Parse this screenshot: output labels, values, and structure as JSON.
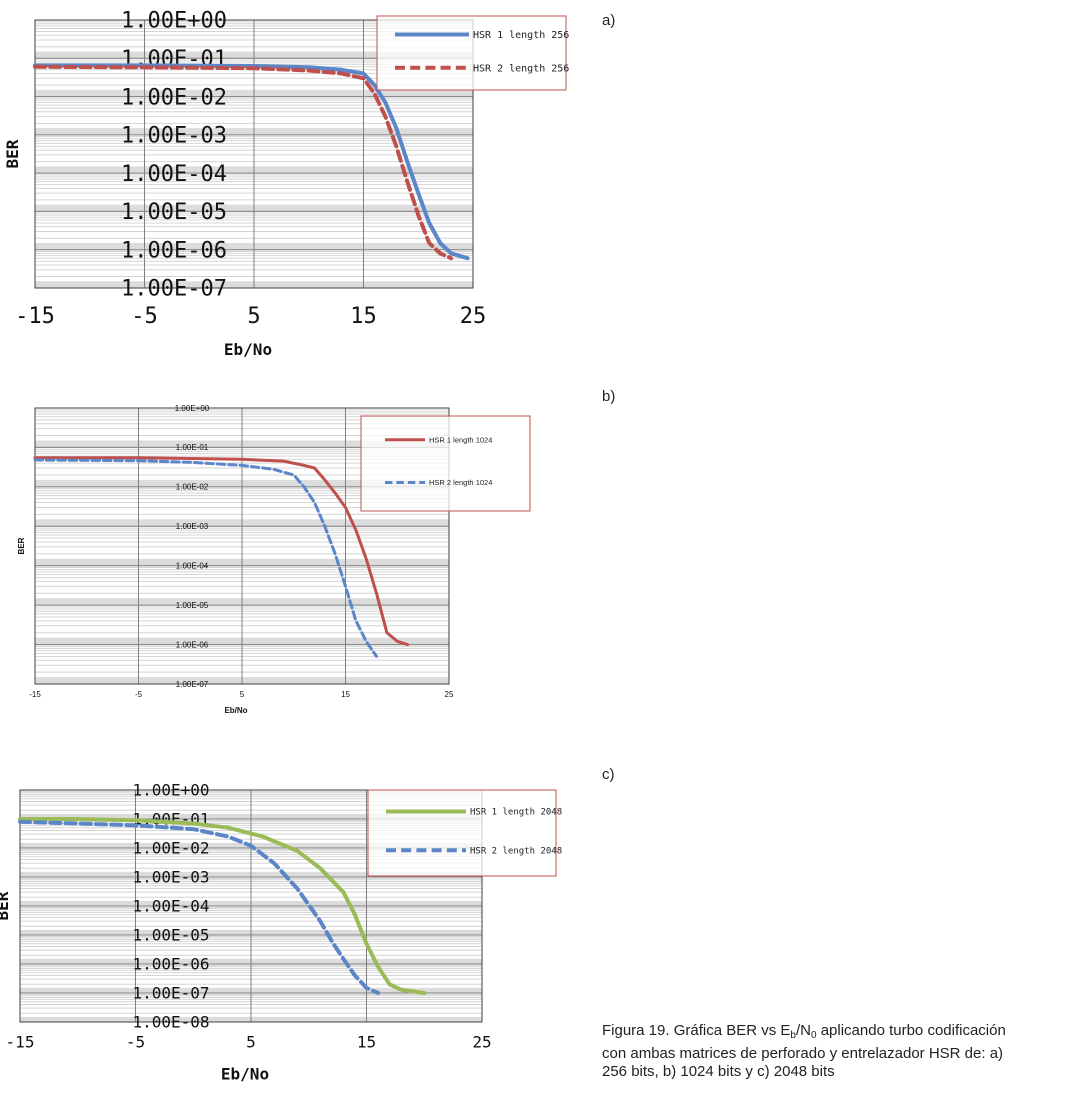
{
  "panel_labels": [
    "a)",
    "b)",
    "c)"
  ],
  "caption": {
    "line1_prefix": "Figura 19. Gráfica BER vs E",
    "sub_b": "b",
    "slash_n": "/N",
    "sub_0": "0",
    "line1_suffix": " aplicando turbo codificación",
    "line2": "con ambas matrices de perforado y entrelazador HSR de: a)",
    "line3": "256 bits, b) 1024 bits y c) 2048 bits"
  },
  "colors": {
    "blue": "#5b86c8",
    "red": "#c0504d",
    "green": "#9bbb59",
    "legend_border": "#c0504d",
    "grid_major": "#808080",
    "grid_minor": "#d4d4d4",
    "band": "#bfbfbf",
    "axis": "#404040"
  },
  "chart_data": [
    {
      "id": "a",
      "type": "line",
      "title": "",
      "xlabel": "Eb/No",
      "ylabel": "BER",
      "xlim": [
        -15,
        25
      ],
      "xticks": [
        "-15",
        "-5",
        "5",
        "15",
        "25"
      ],
      "ylim_log10": [
        -7,
        0
      ],
      "ytick_labels": [
        "1.00E+00",
        "1.00E-01",
        "1.00E-02",
        "1.00E-03",
        "1.00E-04",
        "1.00E-05",
        "1.00E-06",
        "1.00E-07"
      ],
      "series": [
        {
          "name": "HSR 1 length 256",
          "color": "#5b86c8",
          "dash": "solid",
          "x": [
            -15,
            -5,
            5,
            10,
            13,
            15,
            16,
            17,
            18,
            19,
            20,
            21,
            22,
            23,
            24.5
          ],
          "y": [
            0.065,
            0.065,
            0.063,
            0.058,
            0.05,
            0.04,
            0.02,
            0.007,
            0.0015,
            0.0002,
            3e-05,
            5e-06,
            1.5e-06,
            8e-07,
            6e-07
          ]
        },
        {
          "name": "HSR 2 length 256",
          "color": "#c0504d",
          "dash": "dashed",
          "x": [
            -15,
            -5,
            5,
            10,
            13,
            15,
            16,
            17,
            18,
            19,
            20,
            21,
            22,
            23
          ],
          "y": [
            0.06,
            0.058,
            0.055,
            0.048,
            0.04,
            0.03,
            0.012,
            0.003,
            0.0005,
            6e-05,
            8e-06,
            1.5e-06,
            8e-07,
            6e-07
          ]
        }
      ]
    },
    {
      "id": "b",
      "type": "line",
      "title": "",
      "xlabel": "Eb/No",
      "ylabel": "BER",
      "xlim": [
        -15,
        25
      ],
      "xticks": [
        "-15",
        "-5",
        "5",
        "15",
        "25"
      ],
      "ylim_log10": [
        -7,
        0
      ],
      "ytick_labels": [
        "1.00E+00",
        "1.00E-01",
        "1.00E-02",
        "1.00E-03",
        "1.00E-04",
        "1.00E-05",
        "1.00E-06",
        "1.00E-07"
      ],
      "series": [
        {
          "name": "HSR 1 length  1024",
          "color": "#c0504d",
          "dash": "solid",
          "x": [
            -15,
            -5,
            5,
            9,
            11,
            12,
            13,
            14,
            15,
            16,
            17,
            18,
            19,
            20,
            21
          ],
          "y": [
            0.055,
            0.055,
            0.05,
            0.045,
            0.035,
            0.03,
            0.015,
            0.007,
            0.003,
            0.0008,
            0.00015,
            2e-05,
            2e-06,
            1.2e-06,
            1e-06
          ]
        },
        {
          "name": "HSR 2 length  1024",
          "color": "#5b86c8",
          "dash": "dashed",
          "x": [
            -15,
            -5,
            0,
            5,
            8,
            10,
            11,
            12,
            13,
            14,
            15,
            16,
            17,
            18
          ],
          "y": [
            0.048,
            0.046,
            0.042,
            0.035,
            0.028,
            0.02,
            0.01,
            0.004,
            0.001,
            0.0002,
            3e-05,
            4e-06,
            1.2e-06,
            5e-07
          ]
        }
      ]
    },
    {
      "id": "c",
      "type": "line",
      "title": "",
      "xlabel": "Eb/No",
      "ylabel": "BER",
      "xlim": [
        -15,
        25
      ],
      "xticks": [
        "-15",
        "-5",
        "5",
        "15",
        "25"
      ],
      "ylim_log10": [
        -8,
        0
      ],
      "ytick_labels": [
        "1.00E+00",
        "1.00E-01",
        "1.00E-02",
        "1.00E-03",
        "1.00E-04",
        "1.00E-05",
        "1.00E-06",
        "1.00E-07",
        "1.00E-08"
      ],
      "series": [
        {
          "name": "HSR 1 length  2048",
          "color": "#9bbb59",
          "dash": "solid",
          "x": [
            -15,
            -10,
            -5,
            0,
            3,
            6,
            9,
            11,
            13,
            14,
            15,
            16,
            17,
            18,
            20
          ],
          "y": [
            0.1,
            0.1,
            0.09,
            0.07,
            0.05,
            0.025,
            0.008,
            0.002,
            0.0003,
            5e-05,
            5e-06,
            8e-07,
            2e-07,
            1.3e-07,
            1e-07
          ]
        },
        {
          "name": "HSR 2 length  2048",
          "color": "#5b86c8",
          "dash": "dashed",
          "x": [
            -15,
            -10,
            -5,
            0,
            3,
            5,
            7,
            9,
            11,
            12,
            13,
            14,
            15,
            16
          ],
          "y": [
            0.08,
            0.07,
            0.06,
            0.045,
            0.025,
            0.012,
            0.003,
            0.0004,
            3e-05,
            6e-06,
            1.5e-06,
            4e-07,
            1.5e-07,
            1e-07
          ]
        }
      ]
    }
  ]
}
